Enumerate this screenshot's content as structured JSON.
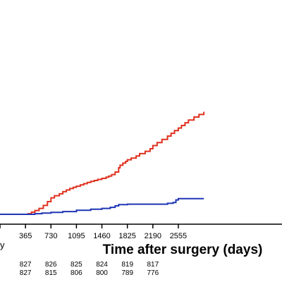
{
  "chart_data": {
    "type": "line",
    "title": "",
    "xlabel": "Time after surgery (days)",
    "ylabel": "",
    "left_cut_label": "y",
    "xlim": [
      0,
      2920
    ],
    "ylim": [
      0,
      1
    ],
    "x_ticks": [
      0,
      365,
      730,
      1095,
      1460,
      1825,
      2190,
      2555
    ],
    "x_tick_labels": [
      "",
      "365",
      "730",
      "1095",
      "1460",
      "1825",
      "2190",
      "2555"
    ],
    "series": [
      {
        "color": "#e0301e",
        "x": [
          0,
          365,
          400,
          450,
          500,
          560,
          620,
          680,
          730,
          780,
          850,
          900,
          950,
          1000,
          1050,
          1095,
          1150,
          1200,
          1250,
          1300,
          1350,
          1400,
          1460,
          1520,
          1560,
          1600,
          1650,
          1700,
          1720,
          1760,
          1800,
          1825,
          1880,
          1950,
          2000,
          2080,
          2150,
          2190,
          2250,
          2320,
          2400,
          2450,
          2500,
          2555,
          2600,
          2650,
          2700,
          2780,
          2850,
          2920
        ],
        "y": [
          0,
          0,
          0.003,
          0.01,
          0.018,
          0.028,
          0.042,
          0.06,
          0.078,
          0.088,
          0.097,
          0.107,
          0.115,
          0.122,
          0.128,
          0.133,
          0.139,
          0.145,
          0.151,
          0.156,
          0.16,
          0.165,
          0.17,
          0.176,
          0.181,
          0.188,
          0.2,
          0.22,
          0.232,
          0.242,
          0.25,
          0.258,
          0.266,
          0.276,
          0.287,
          0.298,
          0.31,
          0.325,
          0.339,
          0.354,
          0.37,
          0.383,
          0.396,
          0.408,
          0.42,
          0.433,
          0.446,
          0.46,
          0.472,
          0.485
        ]
      },
      {
        "color": "#1f35b5",
        "x": [
          0,
          365,
          500,
          600,
          730,
          900,
          1095,
          1300,
          1460,
          1580,
          1650,
          1700,
          1825,
          2000,
          2190,
          2400,
          2480,
          2520,
          2555,
          2650,
          2800,
          2920
        ],
        "y": [
          0,
          0,
          0.003,
          0.006,
          0.009,
          0.013,
          0.019,
          0.024,
          0.028,
          0.033,
          0.04,
          0.046,
          0.048,
          0.048,
          0.048,
          0.052,
          0.056,
          0.068,
          0.074,
          0.074,
          0.074,
          0.074
        ]
      }
    ]
  },
  "risk_table": {
    "rows": [
      {
        "x": [
          365,
          730,
          1095,
          1460,
          1825,
          2190
        ],
        "values": [
          "827",
          "826",
          "825",
          "824",
          "819",
          "817"
        ]
      },
      {
        "x": [
          365,
          730,
          1095,
          1460,
          1825,
          2190
        ],
        "values": [
          "827",
          "815",
          "806",
          "800",
          "789",
          "776"
        ]
      }
    ]
  }
}
